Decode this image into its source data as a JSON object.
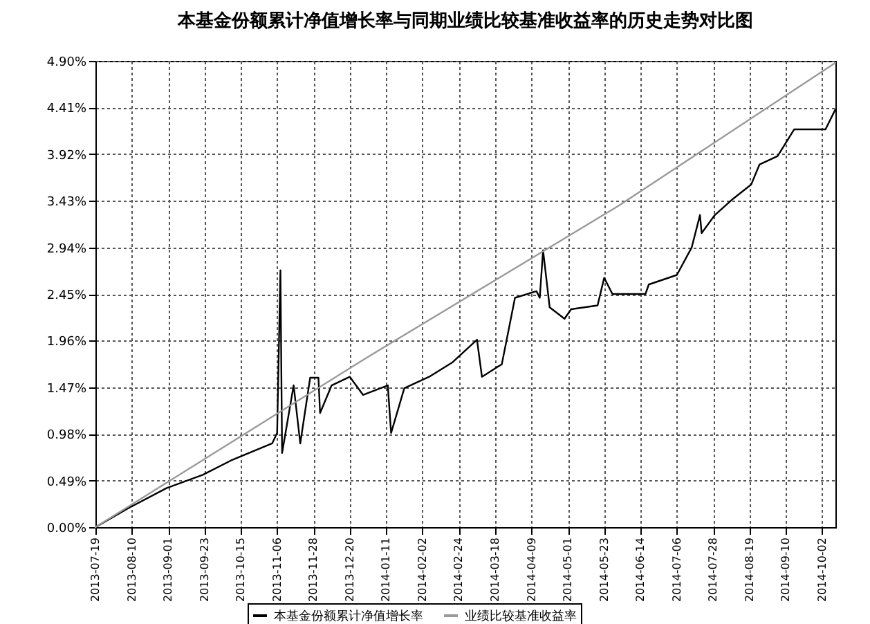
{
  "chart_data": {
    "type": "line",
    "title": "本基金份额累计净值增长率与同期业绩比较基准收益率的历史走势对比图",
    "xlim": [
      "2013-07-19",
      "2014-10-10"
    ],
    "xticks": [
      "2013-07-19",
      "2013-08-10",
      "2013-09-01",
      "2013-09-23",
      "2013-10-15",
      "2013-11-06",
      "2013-11-28",
      "2013-12-20",
      "2014-01-11",
      "2014-02-02",
      "2014-02-24",
      "2014-03-18",
      "2014-04-09",
      "2014-05-01",
      "2014-05-23",
      "2014-06-14",
      "2014-07-06",
      "2014-07-28",
      "2014-08-19",
      "2014-09-10",
      "2014-10-02"
    ],
    "ylim": [
      0,
      4.9
    ],
    "yticks": [
      {
        "value": 0,
        "label": "0.00%"
      },
      {
        "value": 0.49,
        "label": "0.49%"
      },
      {
        "value": 0.98,
        "label": "0.98%"
      },
      {
        "value": 1.47,
        "label": "1.47%"
      },
      {
        "value": 1.96,
        "label": "1.96%"
      },
      {
        "value": 2.45,
        "label": "2.45%"
      },
      {
        "value": 2.94,
        "label": "2.94%"
      },
      {
        "value": 3.43,
        "label": "3.43%"
      },
      {
        "value": 3.92,
        "label": "3.92%"
      },
      {
        "value": 4.41,
        "label": "4.41%"
      },
      {
        "value": 4.9,
        "label": "4.90%"
      }
    ],
    "grid": true,
    "legend": "bottom",
    "line_style": "solid",
    "series": [
      {
        "name": "本基金份额累计净值增长率",
        "color": "#000000",
        "x": [
          "2013-07-20",
          "2013-08-08",
          "2013-08-31",
          "2013-09-22",
          "2013-10-09",
          "2013-11-03",
          "2013-11-06",
          "2013-11-08",
          "2013-11-09",
          "2013-11-16",
          "2013-11-20",
          "2013-11-26",
          "2013-12-01",
          "2013-12-02",
          "2013-12-09",
          "2013-12-20",
          "2013-12-28",
          "2014-01-12",
          "2014-01-14",
          "2014-01-22",
          "2014-02-06",
          "2014-02-20",
          "2014-03-07",
          "2014-03-10",
          "2014-03-19",
          "2014-03-22",
          "2014-03-30",
          "2014-04-12",
          "2014-04-14",
          "2014-04-16",
          "2014-04-20",
          "2014-04-29",
          "2014-05-03",
          "2014-05-19",
          "2014-05-23",
          "2014-05-28",
          "2014-06-17",
          "2014-06-19",
          "2014-07-06",
          "2014-07-15",
          "2014-07-20",
          "2014-07-21",
          "2014-07-29",
          "2014-08-09",
          "2014-08-20",
          "2014-08-25",
          "2014-09-05",
          "2014-09-15",
          "2014-10-04",
          "2014-10-10"
        ],
        "values": [
          0.01,
          0.2,
          0.41,
          0.55,
          0.7,
          0.88,
          0.99,
          2.7,
          0.78,
          1.49,
          0.88,
          1.57,
          1.57,
          1.2,
          1.49,
          1.58,
          1.39,
          1.49,
          0.99,
          1.46,
          1.58,
          1.73,
          1.97,
          1.58,
          1.68,
          1.71,
          2.41,
          2.48,
          2.41,
          2.91,
          2.31,
          2.19,
          2.29,
          2.33,
          2.62,
          2.45,
          2.45,
          2.55,
          2.65,
          2.94,
          3.28,
          3.09,
          3.28,
          3.45,
          3.6,
          3.81,
          3.9,
          4.18,
          4.18,
          4.39
        ]
      },
      {
        "name": "业绩比较基准收益率",
        "color": "#999999",
        "x": [
          "2013-07-19",
          "2014-01-01",
          "2014-06-01",
          "2014-10-10"
        ],
        "values": [
          0,
          1.8,
          3.38,
          4.88
        ]
      }
    ]
  }
}
